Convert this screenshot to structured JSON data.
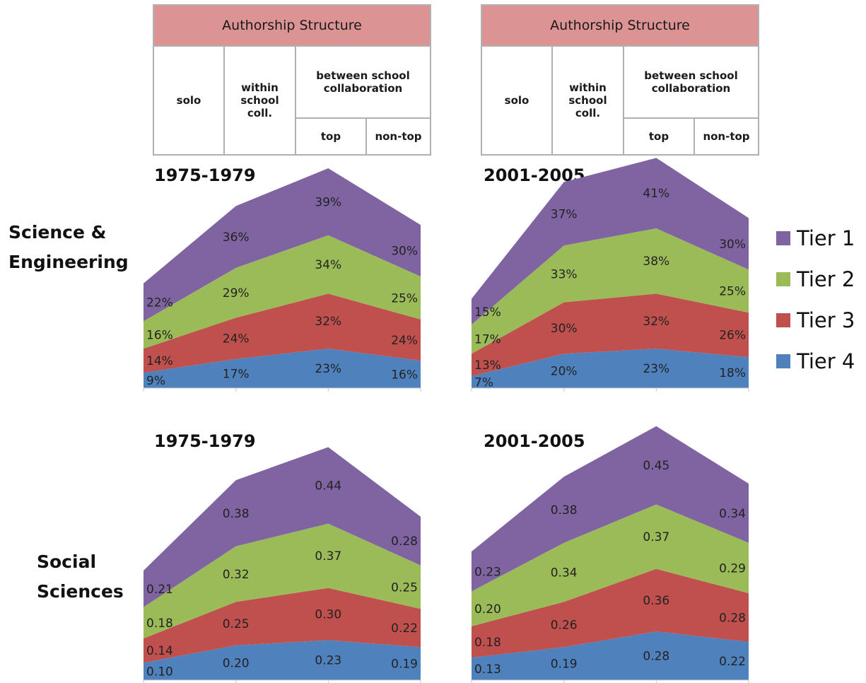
{
  "header": {
    "title": "Authorship Structure",
    "col_solo": "solo",
    "col_within": "within school coll.",
    "col_between": "between school collaboration",
    "col_top": "top",
    "col_nontop": "non-top"
  },
  "row_labels": {
    "science": "Science & Engineering",
    "social": "Social Sciences"
  },
  "legend": [
    {
      "name": "Tier 1",
      "color": "#8064a2"
    },
    {
      "name": "Tier 2",
      "color": "#9bbb59"
    },
    {
      "name": "Tier 3",
      "color": "#c0504d"
    },
    {
      "name": "Tier 4",
      "color": "#4f81bd"
    }
  ],
  "chart_data": [
    {
      "type": "area",
      "stacked": true,
      "title": "1975-1979",
      "group": "Science & Engineering",
      "categories": [
        "solo",
        "within school coll.",
        "top",
        "non-top"
      ],
      "series": [
        {
          "name": "Tier 4",
          "values": [
            9,
            17,
            23,
            16
          ],
          "labels": [
            "9%",
            "17%",
            "23%",
            "16%"
          ]
        },
        {
          "name": "Tier 3",
          "values": [
            14,
            24,
            32,
            24
          ],
          "labels": [
            "14%",
            "24%",
            "32%",
            "24%"
          ]
        },
        {
          "name": "Tier 2",
          "values": [
            16,
            29,
            34,
            25
          ],
          "labels": [
            "16%",
            "29%",
            "34%",
            "25%"
          ]
        },
        {
          "name": "Tier 1",
          "values": [
            22,
            36,
            39,
            30
          ],
          "labels": [
            "22%",
            "36%",
            "39%",
            "30%"
          ]
        }
      ]
    },
    {
      "type": "area",
      "stacked": true,
      "title": "2001-2005",
      "group": "Science & Engineering",
      "categories": [
        "solo",
        "within school coll.",
        "top",
        "non-top"
      ],
      "series": [
        {
          "name": "Tier 4",
          "values": [
            7,
            20,
            23,
            18
          ],
          "labels": [
            "7%",
            "20%",
            "23%",
            "18%"
          ]
        },
        {
          "name": "Tier 3",
          "values": [
            13,
            30,
            32,
            26
          ],
          "labels": [
            "13%",
            "30%",
            "32%",
            "26%"
          ]
        },
        {
          "name": "Tier 2",
          "values": [
            17,
            33,
            38,
            25
          ],
          "labels": [
            "17%",
            "33%",
            "38%",
            "25%"
          ]
        },
        {
          "name": "Tier 1",
          "values": [
            15,
            37,
            41,
            30
          ],
          "labels": [
            "15%",
            "37%",
            "41%",
            "30%"
          ]
        }
      ]
    },
    {
      "type": "area",
      "stacked": true,
      "title": "1975-1979",
      "group": "Social Sciences",
      "categories": [
        "solo",
        "within school coll.",
        "top",
        "non-top"
      ],
      "series": [
        {
          "name": "Tier 4",
          "values": [
            0.1,
            0.2,
            0.23,
            0.19
          ],
          "labels": [
            "0.10",
            "0.20",
            "0.23",
            "0.19"
          ]
        },
        {
          "name": "Tier 3",
          "values": [
            0.14,
            0.25,
            0.3,
            0.22
          ],
          "labels": [
            "0.14",
            "0.25",
            "0.30",
            "0.22"
          ]
        },
        {
          "name": "Tier 2",
          "values": [
            0.18,
            0.32,
            0.37,
            0.25
          ],
          "labels": [
            "0.18",
            "0.32",
            "0.37",
            "0.25"
          ]
        },
        {
          "name": "Tier 1",
          "values": [
            0.21,
            0.38,
            0.44,
            0.28
          ],
          "labels": [
            "0.21",
            "0.38",
            "0.44",
            "0.28"
          ]
        }
      ]
    },
    {
      "type": "area",
      "stacked": true,
      "title": "2001-2005",
      "group": "Social Sciences",
      "categories": [
        "solo",
        "within school coll.",
        "top",
        "non-top"
      ],
      "series": [
        {
          "name": "Tier 4",
          "values": [
            0.13,
            0.19,
            0.28,
            0.22
          ],
          "labels": [
            "0.13",
            "0.19",
            "0.28",
            "0.22"
          ]
        },
        {
          "name": "Tier 3",
          "values": [
            0.18,
            0.26,
            0.36,
            0.28
          ],
          "labels": [
            "0.18",
            "0.26",
            "0.36",
            "0.28"
          ]
        },
        {
          "name": "Tier 2",
          "values": [
            0.2,
            0.34,
            0.37,
            0.29
          ],
          "labels": [
            "0.20",
            "0.34",
            "0.37",
            "0.29"
          ]
        },
        {
          "name": "Tier 1",
          "values": [
            0.23,
            0.38,
            0.45,
            0.34
          ],
          "labels": [
            "0.23",
            "0.38",
            "0.45",
            "0.34"
          ]
        }
      ]
    }
  ]
}
